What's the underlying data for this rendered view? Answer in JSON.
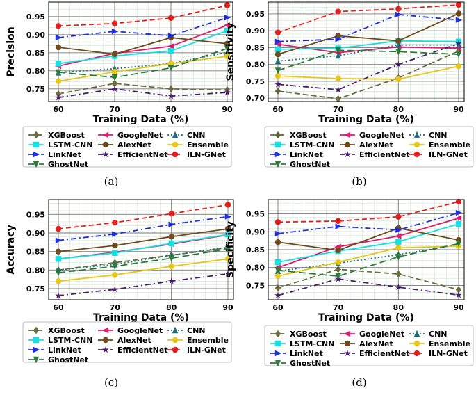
{
  "series_meta": [
    {
      "name": "XGBoost",
      "color": "#6b6b3f",
      "dash": "8,4",
      "marker": "diamond"
    },
    {
      "name": "GoogleNet",
      "color": "#e0196e",
      "dash": "",
      "marker": "tri-left"
    },
    {
      "name": "CNN",
      "color": "#1f6e78",
      "dash": "2,3",
      "marker": "tri-up"
    },
    {
      "name": "LSTM-CNN",
      "color": "#17e0e0",
      "dash": "",
      "marker": "square"
    },
    {
      "name": "AlexNet",
      "color": "#6e4a1c",
      "dash": "",
      "marker": "circle"
    },
    {
      "name": "Ensemble",
      "color": "#e6c619",
      "dash": "",
      "marker": "circle"
    },
    {
      "name": "LinkNet",
      "color": "#1f2fe0",
      "dash": "8,4,2,4",
      "marker": "tri-right"
    },
    {
      "name": "EfficientNet",
      "color": "#4a1a6e",
      "dash": "8,4,2,4",
      "marker": "star"
    },
    {
      "name": "ILN-GNet",
      "color": "#e02020",
      "dash": "7,4",
      "marker": "circle"
    },
    {
      "name": "GhostNet",
      "color": "#2a7a3a",
      "dash": "10,5",
      "marker": "tri-down"
    }
  ],
  "chart_data": [
    {
      "type": "line",
      "panel_label": "(a)",
      "xlabel": "Training Data (%)",
      "ylabel": "Precision",
      "x": [
        60,
        70,
        80,
        90
      ],
      "ylim": [
        0.715,
        0.99
      ],
      "yticks": [
        0.75,
        0.8,
        0.85,
        0.9,
        0.95
      ],
      "ytick_labels": [
        "0.75",
        "0.80",
        "0.85",
        "0.90",
        "0.95"
      ],
      "xtick_labels": [
        "60",
        "70",
        "80",
        "90"
      ],
      "grid": true,
      "legend_placement": "below",
      "series": [
        {
          "name": "XGBoost",
          "values": [
            0.736,
            0.765,
            0.75,
            0.747
          ]
        },
        {
          "name": "GoogleNet",
          "values": [
            0.813,
            0.848,
            0.868,
            0.926
          ]
        },
        {
          "name": "CNN",
          "values": [
            0.795,
            0.806,
            0.82,
            0.851
          ]
        },
        {
          "name": "LSTM-CNN",
          "values": [
            0.82,
            0.841,
            0.855,
            0.911
          ]
        },
        {
          "name": "AlexNet",
          "values": [
            0.865,
            0.846,
            0.892,
            0.875
          ]
        },
        {
          "name": "Ensemble",
          "values": [
            0.771,
            0.797,
            0.82,
            0.84
          ]
        },
        {
          "name": "LinkNet",
          "values": [
            0.892,
            0.909,
            0.897,
            0.947
          ]
        },
        {
          "name": "EfficientNet",
          "values": [
            0.726,
            0.75,
            0.73,
            0.74
          ]
        },
        {
          "name": "ILN-GNet",
          "values": [
            0.924,
            0.931,
            0.946,
            0.981
          ]
        },
        {
          "name": "GhostNet",
          "values": [
            0.796,
            0.782,
            0.808,
            0.862
          ]
        }
      ]
    },
    {
      "type": "line",
      "panel_label": "(b)",
      "xlabel": "Training Data (%)",
      "ylabel": "Sensitivity",
      "x": [
        60,
        70,
        80,
        90
      ],
      "ylim": [
        0.69,
        0.985
      ],
      "yticks": [
        0.7,
        0.75,
        0.8,
        0.85,
        0.9,
        0.95
      ],
      "ytick_labels": [
        "0.70",
        "0.75",
        "0.80",
        "0.85",
        "0.90",
        "0.95"
      ],
      "xtick_labels": [
        "60",
        "70",
        "80",
        "90"
      ],
      "grid": true,
      "legend_placement": "below",
      "series": [
        {
          "name": "XGBoost",
          "values": [
            0.721,
            0.698,
            0.76,
            0.84
          ]
        },
        {
          "name": "GoogleNet",
          "values": [
            0.86,
            0.835,
            0.852,
            0.848
          ]
        },
        {
          "name": "CNN",
          "values": [
            0.81,
            0.826,
            0.858,
            0.858
          ]
        },
        {
          "name": "LSTM-CNN",
          "values": [
            0.845,
            0.848,
            0.87,
            0.868
          ]
        },
        {
          "name": "AlexNet",
          "values": [
            0.83,
            0.885,
            0.87,
            0.951
          ]
        },
        {
          "name": "Ensemble",
          "values": [
            0.766,
            0.758,
            0.756,
            0.795
          ]
        },
        {
          "name": "LinkNet",
          "values": [
            0.868,
            0.875,
            0.948,
            0.932
          ]
        },
        {
          "name": "EfficientNet",
          "values": [
            0.741,
            0.725,
            0.8,
            0.862
          ]
        },
        {
          "name": "ILN-GNet",
          "values": [
            0.895,
            0.957,
            0.965,
            0.977
          ]
        },
        {
          "name": "GhostNet",
          "values": [
            0.782,
            0.842,
            0.838,
            0.83
          ]
        }
      ]
    },
    {
      "type": "line",
      "panel_label": "(c)",
      "xlabel": "Training Data (%)",
      "ylabel": "Accuracy",
      "x": [
        60,
        70,
        80,
        90
      ],
      "ylim": [
        0.72,
        0.99
      ],
      "yticks": [
        0.75,
        0.8,
        0.85,
        0.9,
        0.95
      ],
      "ytick_labels": [
        "0.75",
        "0.80",
        "0.85",
        "0.90",
        "0.95"
      ],
      "xtick_labels": [
        "60",
        "70",
        "80",
        "90"
      ],
      "grid": true,
      "legend_placement": "below",
      "series": [
        {
          "name": "XGBoost",
          "values": [
            0.8,
            0.82,
            0.84,
            0.86
          ]
        },
        {
          "name": "GoogleNet",
          "values": [
            0.83,
            0.848,
            0.87,
            0.895
          ]
        },
        {
          "name": "CNN",
          "values": [
            0.8,
            0.815,
            0.84,
            0.862
          ]
        },
        {
          "name": "LSTM-CNN",
          "values": [
            0.83,
            0.846,
            0.872,
            0.896
          ]
        },
        {
          "name": "AlexNet",
          "values": [
            0.85,
            0.866,
            0.89,
            0.911
          ]
        },
        {
          "name": "Ensemble",
          "values": [
            0.77,
            0.787,
            0.81,
            0.83
          ]
        },
        {
          "name": "LinkNet",
          "values": [
            0.88,
            0.897,
            0.923,
            0.944
          ]
        },
        {
          "name": "EfficientNet",
          "values": [
            0.731,
            0.748,
            0.77,
            0.79
          ]
        },
        {
          "name": "ILN-GNet",
          "values": [
            0.911,
            0.928,
            0.952,
            0.976
          ]
        },
        {
          "name": "GhostNet",
          "values": [
            0.793,
            0.81,
            0.832,
            0.857
          ]
        }
      ]
    },
    {
      "type": "line",
      "panel_label": "(d)",
      "xlabel": "Training Data (%)",
      "ylabel": "Specificity",
      "x": [
        60,
        70,
        80,
        90
      ],
      "ylim": [
        0.71,
        0.99
      ],
      "yticks": [
        0.75,
        0.8,
        0.85,
        0.9,
        0.95
      ],
      "ytick_labels": [
        "0.75",
        "0.80",
        "0.85",
        "0.90",
        "0.95"
      ],
      "xtick_labels": [
        "60",
        "70",
        "80",
        "90"
      ],
      "grid": true,
      "legend_placement": "below",
      "series": [
        {
          "name": "XGBoost",
          "values": [
            0.743,
            0.795,
            0.782,
            0.738
          ]
        },
        {
          "name": "GoogleNet",
          "values": [
            0.8,
            0.858,
            0.888,
            0.938
          ]
        },
        {
          "name": "CNN",
          "values": [
            0.79,
            0.812,
            0.836,
            0.864
          ]
        },
        {
          "name": "LSTM-CNN",
          "values": [
            0.815,
            0.846,
            0.872,
            0.922
          ]
        },
        {
          "name": "AlexNet",
          "values": [
            0.871,
            0.848,
            0.91,
            0.877
          ]
        },
        {
          "name": "Ensemble",
          "values": [
            0.776,
            0.815,
            0.855,
            0.86
          ]
        },
        {
          "name": "LinkNet",
          "values": [
            0.895,
            0.915,
            0.905,
            0.953
          ]
        },
        {
          "name": "EfficientNet",
          "values": [
            0.722,
            0.768,
            0.745,
            0.723
          ]
        },
        {
          "name": "ILN-GNet",
          "values": [
            0.927,
            0.93,
            0.942,
            0.984
          ]
        },
        {
          "name": "GhostNet",
          "values": [
            0.792,
            0.776,
            0.83,
            0.867
          ]
        }
      ]
    }
  ]
}
